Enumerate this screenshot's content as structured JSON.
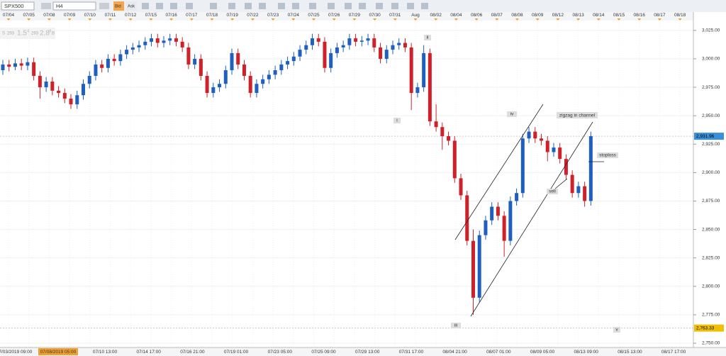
{
  "toolbar": {
    "symbol": "SPX500",
    "timeframe": "H4",
    "bid": "Bid",
    "ask": "Ask"
  },
  "quote": {
    "sell": "S",
    "sell_big": "293",
    "sell_price": "1.5",
    "sell_pip": "4",
    "buy_big": "293",
    "buy_price": "2.8",
    "buy_pip": "8",
    "buy": "B"
  },
  "top_dates": [
    "07/04",
    "07/05",
    "07/08",
    "07/09",
    "07/10",
    "07/11",
    "07/12",
    "07/15",
    "07/16",
    "07/17",
    "07/18",
    "07/19",
    "07/22",
    "07/23",
    "07/24",
    "07/25",
    "07/26",
    "07/29",
    "07/30",
    "07/31",
    "Aug",
    "08/02",
    "08/04",
    "08/06",
    "08/07",
    "08/08",
    "08/09",
    "08/12",
    "08/13",
    "08/14",
    "08/15",
    "08/16",
    "08/17",
    "08/18"
  ],
  "time_labels": [
    "07/03/2019 09:00",
    "07/08/2019 05:00",
    "07/10 13:00",
    "07/14 17:00",
    "07/16 21:00",
    "07/19 01:00",
    "07/23 05:00",
    "07/25 09:00",
    "07/29 13:00",
    "07/31 17:00",
    "08/04 21:00",
    "08/07 01:00",
    "08/09 05:00",
    "08/13 09:00",
    "08/15 13:00",
    "08/17 17:00"
  ],
  "annotations": [
    "ii",
    "i",
    "iv",
    "zigzag in channel",
    "stoploss",
    "sell",
    "iii",
    "v"
  ],
  "chart_data": {
    "type": "candlestick",
    "up_color": "#1f5fbf",
    "down_color": "#d0202a",
    "grid": true,
    "ylim": [
      2747.5,
      3033
    ],
    "yticks": [
      {
        "value": 3025,
        "label": "3,025.00"
      },
      {
        "value": 3000,
        "label": "3,000.00"
      },
      {
        "value": 2975,
        "label": "2,975.00"
      },
      {
        "value": 2950,
        "label": "2,950.00"
      },
      {
        "value": 2925,
        "label": "2,925.00"
      },
      {
        "value": 2900,
        "label": "2,900.00"
      },
      {
        "value": 2875,
        "label": "2,875.00"
      },
      {
        "value": 2850,
        "label": "2,850.00"
      },
      {
        "value": 2825,
        "label": "2,825.00"
      },
      {
        "value": 2800,
        "label": "2,800.00"
      },
      {
        "value": 2775,
        "label": "2,775.00"
      },
      {
        "value": 2750,
        "label": "2,750.00"
      }
    ],
    "price_markers": [
      {
        "value": 2931.96,
        "label": "2,931.96",
        "color": "#3a8fd8"
      },
      {
        "value": 2763.33,
        "label": "2,763.33",
        "color": "#f0c000"
      }
    ],
    "candles": [
      [
        2990,
        2999,
        2986,
        2995
      ],
      [
        2995,
        2999,
        2989,
        2993
      ],
      [
        2993,
        3000,
        2990,
        2996
      ],
      [
        2996,
        3000,
        2990,
        2994
      ],
      [
        2994,
        3001,
        2990,
        2997
      ],
      [
        2997,
        3001,
        2981,
        2985
      ],
      [
        2985,
        2989,
        2965,
        2975
      ],
      [
        2975,
        2984,
        2971,
        2980
      ],
      [
        2980,
        2984,
        2968,
        2972
      ],
      [
        2972,
        2976,
        2966,
        2970
      ],
      [
        2970,
        2974,
        2961,
        2965
      ],
      [
        2965,
        2969,
        2956,
        2960
      ],
      [
        2960,
        2972,
        2956,
        2968
      ],
      [
        2968,
        2982,
        2964,
        2978
      ],
      [
        2978,
        2989,
        2974,
        2985
      ],
      [
        2985,
        2999,
        2981,
        2995
      ],
      [
        2995,
        2999,
        2988,
        2992
      ],
      [
        2992,
        3004,
        2988,
        3000
      ],
      [
        3000,
        3004,
        2994,
        2998
      ],
      [
        2998,
        3008,
        2994,
        3004
      ],
      [
        3004,
        3012,
        3000,
        3008
      ],
      [
        3008,
        3014,
        3004,
        3010
      ],
      [
        3010,
        3016,
        3006,
        3012
      ],
      [
        3012,
        3019,
        3008,
        3015
      ],
      [
        3015,
        3022,
        3011,
        3018
      ],
      [
        3018,
        3022,
        3010,
        3014
      ],
      [
        3014,
        3020,
        3010,
        3016
      ],
      [
        3016,
        3022,
        3012,
        3018
      ],
      [
        3018,
        3022,
        3011,
        3015
      ],
      [
        3015,
        3019,
        3006,
        3010
      ],
      [
        3010,
        3014,
        2991,
        2995
      ],
      [
        2995,
        3004,
        2991,
        3000
      ],
      [
        3000,
        3004,
        2981,
        2985
      ],
      [
        2985,
        2989,
        2966,
        2970
      ],
      [
        2970,
        2979,
        2966,
        2975
      ],
      [
        2975,
        2982,
        2971,
        2978
      ],
      [
        2978,
        2994,
        2974,
        2990
      ],
      [
        2990,
        3009,
        2986,
        3005
      ],
      [
        3005,
        3009,
        2991,
        2995
      ],
      [
        2995,
        2999,
        2981,
        2985
      ],
      [
        2985,
        2989,
        2966,
        2970
      ],
      [
        2970,
        2982,
        2966,
        2978
      ],
      [
        2978,
        2986,
        2974,
        2982
      ],
      [
        2982,
        2990,
        2978,
        2986
      ],
      [
        2986,
        2994,
        2982,
        2990
      ],
      [
        2990,
        2999,
        2986,
        2995
      ],
      [
        2995,
        3002,
        2991,
        2998
      ],
      [
        2998,
        3006,
        2994,
        3002
      ],
      [
        3002,
        3012,
        2998,
        3008
      ],
      [
        3008,
        3016,
        3004,
        3012
      ],
      [
        3012,
        3022,
        3008,
        3018
      ],
      [
        3018,
        3022,
        3011,
        3015
      ],
      [
        3015,
        3019,
        2988,
        2992
      ],
      [
        2992,
        3009,
        2988,
        3005
      ],
      [
        3005,
        3014,
        3001,
        3010
      ],
      [
        3010,
        3016,
        3006,
        3012
      ],
      [
        3012,
        3022,
        3008,
        3018
      ],
      [
        3018,
        3022,
        3011,
        3015
      ],
      [
        3015,
        3020,
        3011,
        3016
      ],
      [
        3016,
        3022,
        3012,
        3018
      ],
      [
        3018,
        3022,
        3006,
        3010
      ],
      [
        3010,
        3014,
        2996,
        3000
      ],
      [
        3000,
        3012,
        2996,
        3008
      ],
      [
        3008,
        3016,
        3004,
        3012
      ],
      [
        3012,
        3018,
        3008,
        3014
      ],
      [
        3014,
        3018,
        3006,
        3010
      ],
      [
        3010,
        3014,
        2955,
        2970
      ],
      [
        2970,
        2979,
        2966,
        2975
      ],
      [
        2975,
        3012,
        2971,
        3005
      ],
      [
        3005,
        3009,
        2941,
        2945
      ],
      [
        2945,
        2960,
        2936,
        2940
      ],
      [
        2940,
        2944,
        2920,
        2932
      ],
      [
        2932,
        2936,
        2924,
        2928
      ],
      [
        2928,
        2932,
        2891,
        2895
      ],
      [
        2895,
        2899,
        2876,
        2880
      ],
      [
        2880,
        2884,
        2836,
        2840
      ],
      [
        2840,
        2850,
        2775,
        2790
      ],
      [
        2790,
        2849,
        2786,
        2845
      ],
      [
        2845,
        2862,
        2841,
        2858
      ],
      [
        2858,
        2874,
        2854,
        2870
      ],
      [
        2870,
        2874,
        2858,
        2862
      ],
      [
        2862,
        2866,
        2826,
        2840
      ],
      [
        2840,
        2879,
        2836,
        2875
      ],
      [
        2875,
        2886,
        2871,
        2882
      ],
      [
        2882,
        2934,
        2878,
        2930
      ],
      [
        2930,
        2940,
        2926,
        2936
      ],
      [
        2936,
        2940,
        2926,
        2930
      ],
      [
        2930,
        2934,
        2924,
        2928
      ],
      [
        2928,
        2932,
        2910,
        2918
      ],
      [
        2918,
        2926,
        2914,
        2922
      ],
      [
        2922,
        2926,
        2908,
        2912
      ],
      [
        2912,
        2916,
        2894,
        2898
      ],
      [
        2898,
        2902,
        2878,
        2882
      ],
      [
        2882,
        2892,
        2878,
        2888
      ],
      [
        2888,
        2892,
        2870,
        2875
      ],
      [
        2875,
        2936,
        2871,
        2932
      ]
    ]
  }
}
